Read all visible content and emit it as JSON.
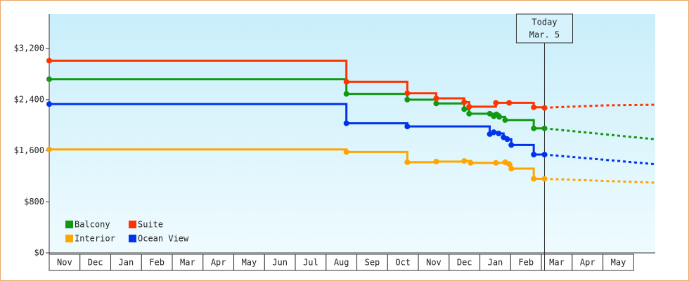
{
  "chart_data": {
    "type": "step-line",
    "xlim": [
      0,
      19.7
    ],
    "ylim": [
      0,
      3740
    ],
    "yticks": [
      {
        "value": 0,
        "label": "$0"
      },
      {
        "value": 800,
        "label": "$800"
      },
      {
        "value": 1600,
        "label": "$1,600"
      },
      {
        "value": 2400,
        "label": "$2,400"
      },
      {
        "value": 3200,
        "label": "$3,200"
      }
    ],
    "xticks": [
      {
        "value": 0,
        "label": "Nov"
      },
      {
        "value": 1,
        "label": "Dec"
      },
      {
        "value": 2,
        "label": "Jan"
      },
      {
        "value": 3,
        "label": "Feb"
      },
      {
        "value": 4,
        "label": "Mar"
      },
      {
        "value": 5,
        "label": "Apr"
      },
      {
        "value": 6,
        "label": "May"
      },
      {
        "value": 7,
        "label": "Jun"
      },
      {
        "value": 8,
        "label": "Jul"
      },
      {
        "value": 9,
        "label": "Aug"
      },
      {
        "value": 10,
        "label": "Sep"
      },
      {
        "value": 11,
        "label": "Oct"
      },
      {
        "value": 12,
        "label": "Nov"
      },
      {
        "value": 13,
        "label": "Dec"
      },
      {
        "value": 14,
        "label": "Jan"
      },
      {
        "value": 15,
        "label": "Feb"
      },
      {
        "value": 16,
        "label": "Mar"
      },
      {
        "value": 17,
        "label": "Apr"
      },
      {
        "value": 18,
        "label": "May"
      }
    ],
    "annotation": {
      "x": 16.1,
      "lines": [
        "Today",
        "Mar. 5"
      ]
    },
    "series": [
      {
        "name": "Balcony",
        "color": "#119911",
        "x": [
          0,
          9.66,
          11.64,
          12.58,
          13.49,
          13.65,
          14.32,
          14.45,
          14.54,
          14.63,
          14.82,
          15.75,
          16.1
        ],
        "values": [
          2720,
          2490,
          2400,
          2340,
          2250,
          2180,
          2180,
          2140,
          2170,
          2130,
          2080,
          1950,
          1950
        ],
        "forecast": {
          "x": [
            16.1,
            19.68
          ],
          "values": [
            1950,
            1780
          ]
        }
      },
      {
        "name": "Suite",
        "color": "#ff3300",
        "x": [
          0,
          9.66,
          11.64,
          12.58,
          13.49,
          13.65,
          14.52,
          14.95,
          15.75,
          16.1
        ],
        "values": [
          3010,
          2680,
          2500,
          2420,
          2360,
          2290,
          2350,
          2350,
          2280,
          2270
        ],
        "forecast": {
          "x": [
            16.1,
            16.44,
            18.04,
            19.68
          ],
          "values": [
            2270,
            2280,
            2310,
            2320
          ]
        }
      },
      {
        "name": "Interior",
        "color": "#ffa500",
        "x": [
          0,
          9.66,
          11.64,
          12.58,
          13.49,
          13.7,
          14.52,
          14.82,
          14.95,
          15.02,
          15.75,
          16.1
        ],
        "values": [
          1620,
          1580,
          1420,
          1430,
          1440,
          1410,
          1410,
          1420,
          1390,
          1320,
          1160,
          1160
        ],
        "forecast": {
          "x": [
            16.1,
            19.68
          ],
          "values": [
            1160,
            1100
          ]
        }
      },
      {
        "name": "Ocean View",
        "color": "#0033ee",
        "x": [
          0,
          9.66,
          11.64,
          14.32,
          14.45,
          14.61,
          14.77,
          14.89,
          15.02,
          15.75,
          16.1
        ],
        "values": [
          2330,
          2030,
          1980,
          1860,
          1890,
          1870,
          1810,
          1780,
          1690,
          1540,
          1540
        ],
        "forecast": {
          "x": [
            16.1,
            19.68
          ],
          "values": [
            1540,
            1390
          ]
        }
      }
    ]
  }
}
